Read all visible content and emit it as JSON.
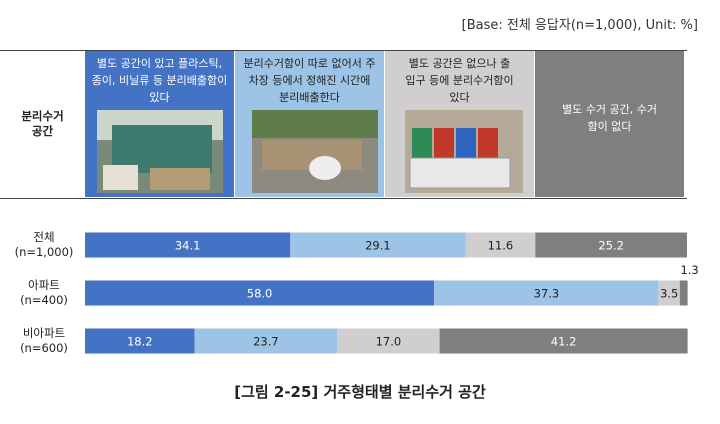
{
  "chart_data": {
    "type": "stacked-bar-horizontal",
    "title": "[그림 2-25] 거주형태별 분리수거 공간",
    "note": "[Base: 전체 응답자(n=1,000), Unit: %]",
    "header_label": "분리수거 공간",
    "categories": [
      "전체 (n=1,000)",
      "아파트 (n=400)",
      "비아파트 (n=600)"
    ],
    "xlim": [
      0,
      100
    ],
    "series": [
      {
        "name": "별도 공간이 있고 플라스틱, 종이, 비닐류 등 분리배출함이 있다",
        "color": "#4472c4",
        "values": [
          34.1,
          58.0,
          18.2
        ],
        "value_labels": [
          "34.1",
          "58.0",
          "18.2"
        ]
      },
      {
        "name": "분리수거함이 따로 없어서 주차장 등에서 정해진 시간에 분리배출한다",
        "color": "#9dc3e6",
        "values": [
          29.1,
          37.3,
          23.7
        ]
      },
      {
        "name": "별도 공간은 없으나 출입구 등에 분리수거함이 있다",
        "color": "#d0cece",
        "values": [
          11.6,
          3.5,
          17.0
        ],
        "value_labels": [
          "11.6",
          "3.5",
          "17.0"
        ]
      },
      {
        "name": "별도 수거 공간, 수거함이 없다",
        "color": "#7f7f7f",
        "values": [
          25.2,
          1.3,
          41.2
        ]
      }
    ]
  }
}
